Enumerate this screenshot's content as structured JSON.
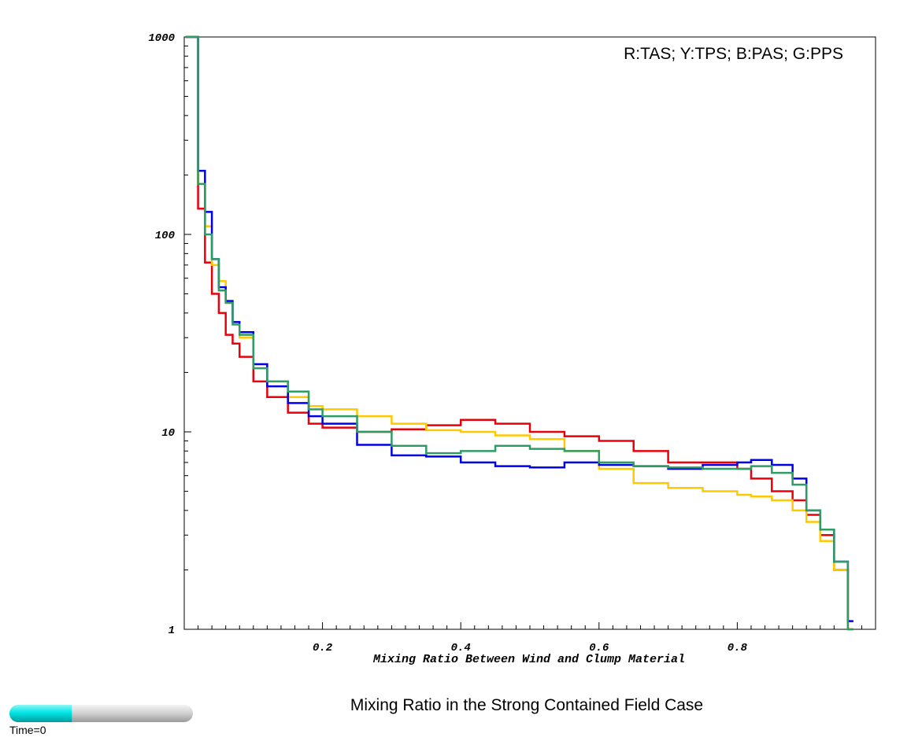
{
  "caption": "Mixing Ratio in the Strong Contained Field Case",
  "time_label": "Time=0",
  "time_progress": 0.34,
  "chart_data": {
    "type": "line",
    "title": "",
    "legend_text": "R:TAS; Y:TPS; B:PAS; G:PPS",
    "legend_position": "top-right",
    "xlabel": "Mixing Ratio Between Wind and Clump Material",
    "ylabel": "",
    "xlim": [
      0.0,
      1.0
    ],
    "ylim": [
      1,
      1000
    ],
    "yscale": "log",
    "grid": false,
    "x_ticks": [
      0.2,
      0.4,
      0.6,
      0.8
    ],
    "x_tick_labels": [
      "0.2",
      "0.4",
      "0.6",
      "0.8"
    ],
    "y_ticks": [
      1,
      10,
      100,
      1000
    ],
    "y_tick_labels": [
      "1",
      "10",
      "100",
      "1000"
    ],
    "x": [
      0.01,
      0.02,
      0.03,
      0.04,
      0.05,
      0.06,
      0.07,
      0.08,
      0.1,
      0.12,
      0.15,
      0.18,
      0.2,
      0.25,
      0.3,
      0.35,
      0.4,
      0.45,
      0.5,
      0.55,
      0.6,
      0.65,
      0.7,
      0.75,
      0.8,
      0.82,
      0.85,
      0.88,
      0.9,
      0.92,
      0.94,
      0.96
    ],
    "series": [
      {
        "color": "#e8000b",
        "values": [
          1000,
          135,
          72,
          50,
          40,
          31,
          28,
          24,
          18,
          15,
          12.5,
          11,
          10.5,
          10,
          10.3,
          10.8,
          11.5,
          11,
          10,
          9.5,
          9,
          8,
          7,
          7,
          6.5,
          5.8,
          5,
          4.5,
          3.8,
          3,
          2,
          1
        ]
      },
      {
        "color": "#ffc800",
        "values": [
          1000,
          180,
          110,
          70,
          58,
          45,
          36,
          30,
          22,
          18,
          15,
          13.5,
          13,
          12,
          11,
          10.2,
          10,
          9.6,
          9.2,
          8,
          6.5,
          5.5,
          5.2,
          5,
          4.8,
          4.7,
          4.5,
          4,
          3.5,
          2.8,
          2,
          1
        ]
      },
      {
        "color": "#0000e6",
        "values": [
          1000,
          210,
          130,
          75,
          54,
          46,
          36,
          32,
          22,
          17,
          14,
          12,
          11,
          8.6,
          7.6,
          7.5,
          7,
          6.7,
          6.6,
          7,
          6.8,
          6.7,
          6.5,
          6.8,
          7,
          7.2,
          6.8,
          5.8,
          4,
          3.2,
          2.2,
          1.1
        ]
      },
      {
        "color": "#2e9c65",
        "values": [
          1000,
          180,
          100,
          75,
          52,
          45,
          35,
          31,
          21,
          18,
          16,
          13,
          12,
          10,
          8.5,
          7.8,
          8,
          8.5,
          8.2,
          8,
          7,
          6.7,
          6.6,
          6.5,
          6.5,
          6.7,
          6.2,
          5.4,
          4,
          3.2,
          2.2,
          1
        ]
      }
    ]
  }
}
